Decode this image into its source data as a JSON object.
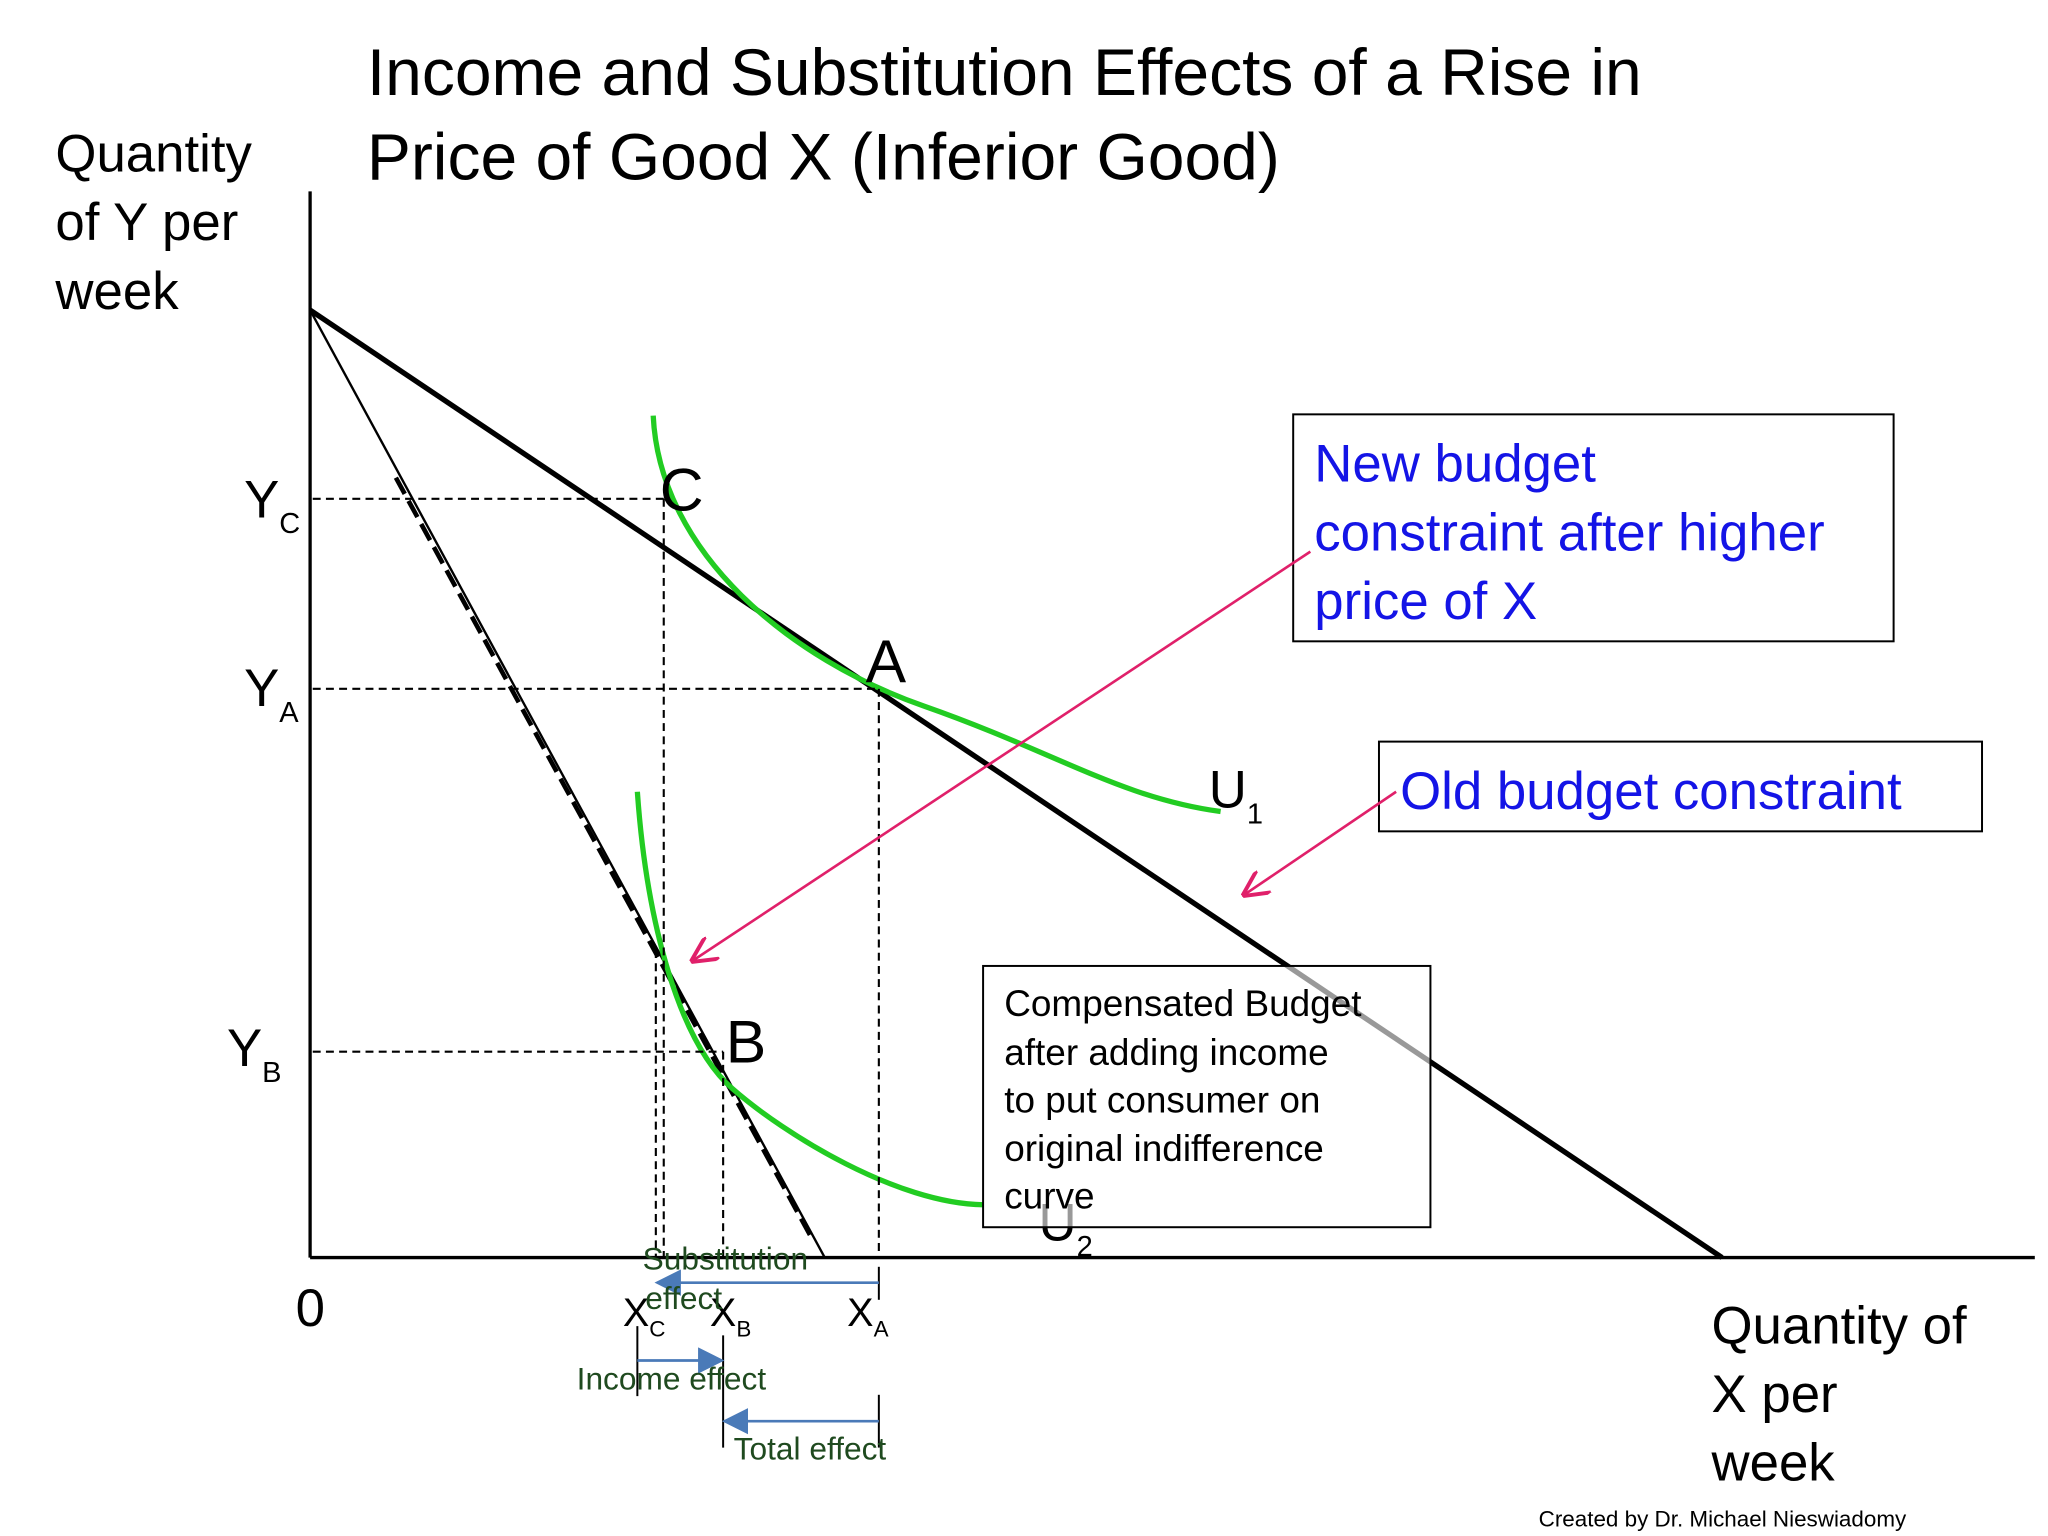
{
  "title": [
    "Income and Substitution Effects of a Rise in",
    "Price of Good X (Inferior Good)"
  ],
  "y_axis_label": [
    "Quantity",
    "of Y per",
    "week"
  ],
  "x_axis_label": [
    "Quantity of",
    "X per",
    "week"
  ],
  "origin": "0",
  "y_labels": [
    {
      "main": "Y",
      "sub": "C"
    },
    {
      "main": "Y",
      "sub": "A"
    },
    {
      "main": "Y",
      "sub": "B"
    }
  ],
  "x_labels": [
    {
      "main": "X",
      "sub": "C"
    },
    {
      "main": "X",
      "sub": "B"
    },
    {
      "main": "X",
      "sub": "A"
    }
  ],
  "points": [
    "C",
    "A",
    "B"
  ],
  "curves": [
    {
      "main": "U",
      "sub": "1"
    },
    {
      "main": "U",
      "sub": "2"
    }
  ],
  "new_budget_box": [
    "New budget",
    "constraint after higher",
    "price of X"
  ],
  "old_budget_box": "Old budget constraint",
  "compensated_box": [
    "Compensated Budget",
    "after adding income",
    "to  put consumer on",
    "original indifference",
    "curve"
  ],
  "effects": {
    "substitution": [
      "Substitution",
      "effect"
    ],
    "income": "Income effect",
    "total": "Total effect"
  },
  "credit": "Created by Dr. Michael Nieswiadomy"
}
